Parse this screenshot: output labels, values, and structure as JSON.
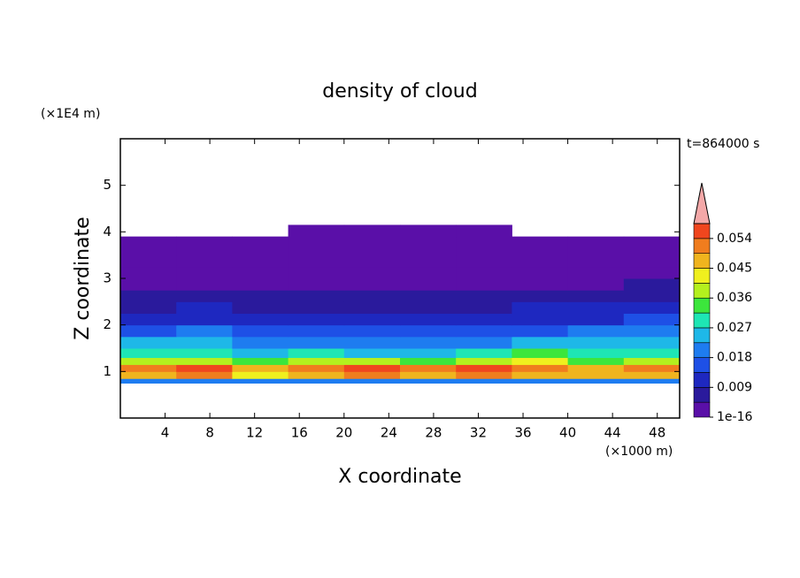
{
  "chart_data": {
    "type": "heatmap",
    "title": "density of cloud",
    "x_label": "X coordinate",
    "y_label": "Z coordinate",
    "x_unit": "(×1000 m)",
    "y_unit": "(×1E4 m)",
    "time_label": "t=864000 s",
    "xlim": [
      0,
      50
    ],
    "ylim": [
      0,
      6
    ],
    "xticks": [
      4,
      8,
      12,
      16,
      20,
      24,
      28,
      32,
      36,
      40,
      44,
      48
    ],
    "yticks": [
      1,
      2,
      3,
      4,
      5
    ],
    "x_edges": [
      0,
      5,
      10,
      15,
      20,
      25,
      30,
      35,
      40,
      45,
      50
    ],
    "y_edges": [
      0.75,
      0.85,
      1.0,
      1.15,
      1.3,
      1.5,
      1.75,
      2.0,
      2.25,
      2.5,
      2.75,
      3.0,
      3.25,
      3.5,
      3.75,
      3.9,
      4.15
    ],
    "values": [
      [
        0.02,
        0.022,
        0.018,
        0.02,
        0.021,
        0.019,
        0.02,
        0.022,
        0.018,
        0.02
      ],
      [
        0.047,
        0.05,
        0.044,
        0.048,
        0.052,
        0.046,
        0.05,
        0.049,
        0.045,
        0.048
      ],
      [
        0.05,
        0.055,
        0.048,
        0.052,
        0.056,
        0.05,
        0.054,
        0.051,
        0.049,
        0.053
      ],
      [
        0.037,
        0.04,
        0.034,
        0.038,
        0.036,
        0.033,
        0.039,
        0.041,
        0.035,
        0.038
      ],
      [
        0.029,
        0.031,
        0.026,
        0.028,
        0.025,
        0.024,
        0.03,
        0.032,
        0.028,
        0.03
      ],
      [
        0.023,
        0.025,
        0.021,
        0.022,
        0.02,
        0.019,
        0.022,
        0.024,
        0.023,
        0.025
      ],
      [
        0.017,
        0.018,
        0.016,
        0.015,
        0.015,
        0.014,
        0.016,
        0.017,
        0.018,
        0.019
      ],
      [
        0.012,
        0.013,
        0.011,
        0.01,
        0.01,
        0.011,
        0.012,
        0.012,
        0.013,
        0.014
      ],
      [
        0.008,
        0.009,
        0.008,
        0.007,
        0.007,
        0.008,
        0.008,
        0.009,
        0.009,
        0.01
      ],
      [
        0.005,
        0.006,
        0.005,
        0.005,
        0.005,
        0.005,
        0.006,
        0.005,
        0.006,
        0.006
      ],
      [
        0.004,
        0.004,
        0.003,
        0.004,
        0.003,
        0.003,
        0.004,
        0.004,
        0.004,
        0.005
      ],
      [
        0.003,
        0.003,
        0.002,
        0.002,
        0.002,
        0.002,
        0.002,
        0.003,
        0.003,
        0.003
      ],
      [
        0.002,
        0.002,
        0.002,
        0.002,
        0.002,
        0.002,
        0.002,
        0.002,
        0.002,
        0.002
      ],
      [
        0.001,
        0.001,
        0.001,
        0.001,
        0.001,
        0.001,
        0.001,
        0.001,
        0.001,
        0.001
      ],
      [
        0.001,
        0.001,
        0.001,
        0.001,
        0.001,
        0.001,
        0.001,
        0.001,
        0.001,
        0.001
      ],
      [
        null,
        null,
        null,
        0.0005,
        0.0005,
        0.0005,
        0.0005,
        null,
        null,
        null
      ]
    ],
    "colorbar": {
      "levels": [
        1e-16,
        0.0045,
        0.009,
        0.0135,
        0.018,
        0.0225,
        0.027,
        0.0315,
        0.036,
        0.0405,
        0.045,
        0.0495,
        0.054,
        0.0585
      ],
      "colors": [
        "#5a0fa8",
        "#2a1a9c",
        "#1e28c0",
        "#1e50e6",
        "#1e7cf0",
        "#1eb8e8",
        "#1ee6b4",
        "#3ce63c",
        "#b4f01e",
        "#f0f01e",
        "#f0b41e",
        "#f07d1e",
        "#f0461e"
      ],
      "extend_color": "#f4a8a8",
      "ticks": [
        1e-16,
        0.009,
        0.018,
        0.027,
        0.036,
        0.045,
        0.054
      ]
    }
  }
}
